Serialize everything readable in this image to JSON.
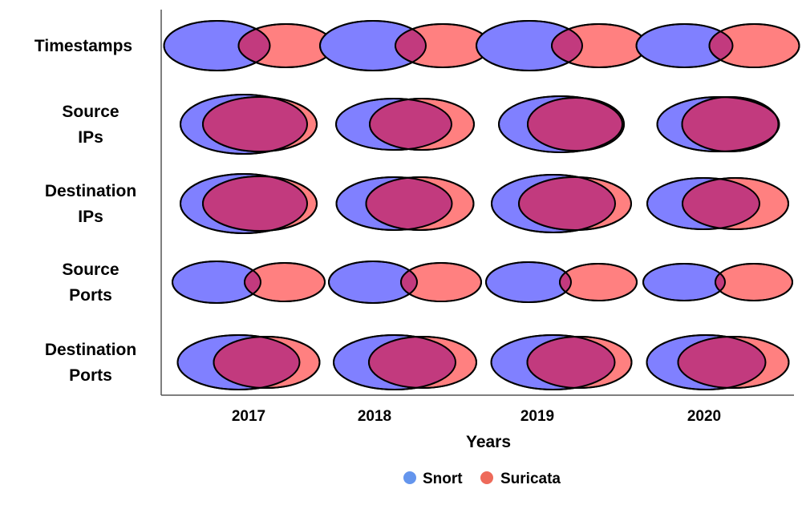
{
  "chart_data": {
    "type": "venn-grid",
    "xlabel": "Years",
    "years": [
      "2017",
      "2018",
      "2019",
      "2020"
    ],
    "rows": [
      {
        "label_lines": [
          "Timestamps"
        ],
        "cells": [
          {
            "snort_w": 66,
            "suricata_w": 59,
            "snort_h": 31,
            "suricata_h": 27,
            "overlap": 39
          },
          {
            "snort_w": 66,
            "suricata_w": 59,
            "snort_h": 31,
            "suricata_h": 27,
            "overlap": 38
          },
          {
            "snort_w": 66,
            "suricata_w": 59,
            "snort_h": 31,
            "suricata_h": 27,
            "overlap": 38
          },
          {
            "snort_w": 60,
            "suricata_w": 56,
            "snort_h": 27,
            "suricata_h": 27,
            "overlap": 29
          }
        ]
      },
      {
        "label_lines": [
          "Source",
          "IPs"
        ],
        "cells": [
          {
            "snort_w": 79,
            "suricata_w": 71,
            "snort_h": 37,
            "suricata_h": 34,
            "overlap": 130
          },
          {
            "snort_w": 72,
            "suricata_w": 65,
            "snort_h": 32,
            "suricata_h": 32,
            "overlap": 102
          },
          {
            "snort_w": 77,
            "suricata_w": 60,
            "snort_h": 35,
            "suricata_h": 33,
            "overlap": 118
          },
          {
            "snort_w": 76,
            "suricata_w": 60,
            "snort_h": 34,
            "suricata_h": 34,
            "overlap": 121
          }
        ]
      },
      {
        "label_lines": [
          "Destination",
          "IPs"
        ],
        "cells": [
          {
            "snort_w": 79,
            "suricata_w": 71,
            "snort_h": 37,
            "suricata_h": 34,
            "overlap": 130
          },
          {
            "snort_w": 72,
            "suricata_w": 67,
            "snort_h": 33,
            "suricata_h": 33,
            "overlap": 107
          },
          {
            "snort_w": 77,
            "suricata_w": 70,
            "snort_h": 36,
            "suricata_h": 33,
            "overlap": 120
          },
          {
            "snort_w": 70,
            "suricata_w": 66,
            "snort_h": 32,
            "suricata_h": 32,
            "overlap": 96
          }
        ]
      },
      {
        "label_lines": [
          "Source",
          "Ports"
        ],
        "cells": [
          {
            "snort_w": 55,
            "suricata_w": 50,
            "snort_h": 26,
            "suricata_h": 24,
            "overlap": 20
          },
          {
            "snort_w": 55,
            "suricata_w": 50,
            "snort_h": 26,
            "suricata_h": 24,
            "overlap": 20
          },
          {
            "snort_w": 53,
            "suricata_w": 48,
            "snort_h": 25,
            "suricata_h": 23,
            "overlap": 14
          },
          {
            "snort_w": 51,
            "suricata_w": 48,
            "snort_h": 23,
            "suricata_h": 23,
            "overlap": 12
          }
        ]
      },
      {
        "label_lines": [
          "Destination",
          "Ports"
        ],
        "cells": [
          {
            "snort_w": 76,
            "suricata_w": 66,
            "snort_h": 34,
            "suricata_h": 32,
            "overlap": 107
          },
          {
            "snort_w": 76,
            "suricata_w": 67,
            "snort_h": 34,
            "suricata_h": 32,
            "overlap": 108
          },
          {
            "snort_w": 77,
            "suricata_w": 65,
            "snort_h": 34,
            "suricata_h": 32,
            "overlap": 109
          },
          {
            "snort_w": 74,
            "suricata_w": 69,
            "snort_h": 34,
            "suricata_h": 32,
            "overlap": 109
          }
        ]
      }
    ],
    "legend": [
      {
        "name": "Snort",
        "color": "#6495ED"
      },
      {
        "name": "Suricata",
        "color": "#EE6A5A"
      }
    ],
    "legend_position": "bottom-center",
    "colors": {
      "snort_fill": "#8080FF",
      "suricata_fill": "#FF8080",
      "overlap_fill": "#C23A7E",
      "stroke": "#000000",
      "axis": "#555555"
    }
  }
}
